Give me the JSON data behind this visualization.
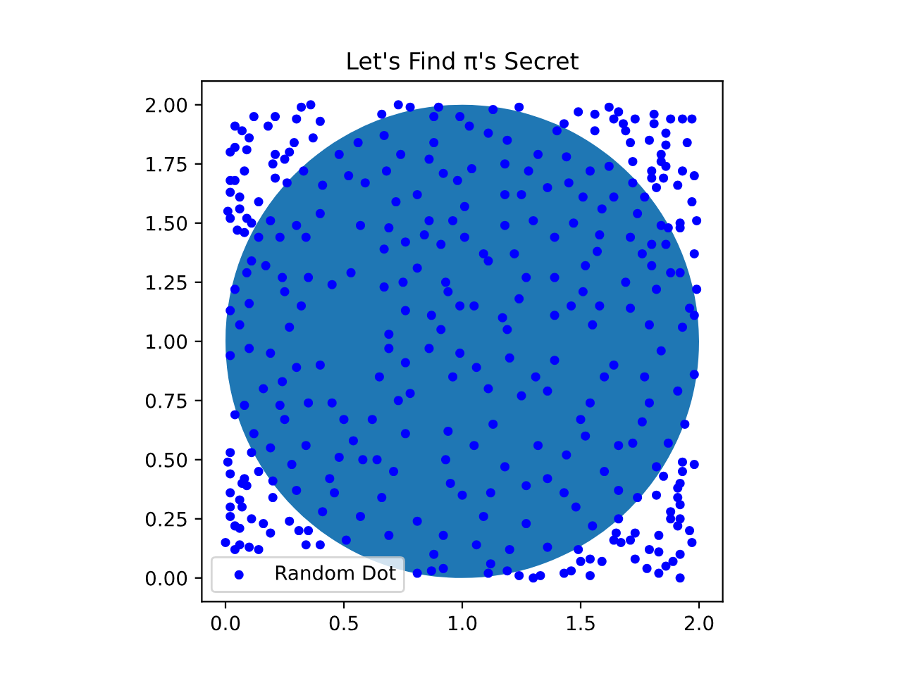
{
  "chart_data": {
    "type": "scatter",
    "title": "Let's Find π's Secret",
    "xlim": [
      -0.1,
      2.1
    ],
    "ylim": [
      -0.1,
      2.1
    ],
    "xticks": [
      {
        "value": 0,
        "label": "0.0"
      },
      0.5,
      {
        "value": 1,
        "label": "1.0"
      },
      1.5,
      {
        "value": 2,
        "label": "2.0"
      }
    ],
    "yticks": [
      {
        "value": 0,
        "label": "0.00"
      },
      0.25,
      {
        "value": 0.5,
        "label": "0.50"
      },
      0.75,
      {
        "value": 1,
        "label": "1.00"
      },
      1.25,
      {
        "value": 1.5,
        "label": "1.50"
      },
      1.75,
      {
        "value": 2,
        "label": "2.00"
      }
    ],
    "marker": "circle",
    "legend": "bottom left",
    "series": [
      {
        "type": "bubble",
        "color": "#1f77b4",
        "x": [
          1
        ],
        "values": [
          1
        ],
        "sizes": [
          1
        ]
      },
      {
        "name": "Random Dot",
        "color": "#0000ff",
        "x": [
          0.36,
          0.32,
          0.12,
          0.04,
          0.07,
          0.18,
          0.21,
          0.3,
          0.4,
          0.37,
          0.1,
          0.04,
          0.02,
          0.09,
          0.21,
          0.29,
          0.27,
          0.25,
          0.2,
          0.08,
          0.02,
          0.04,
          0.21,
          0.06,
          0.14,
          0.02,
          0.01,
          0.06,
          0.09,
          0.11,
          0.05,
          0.08,
          0.02,
          1.62,
          1.66,
          1.56,
          1.49,
          1.64,
          1.81,
          1.93,
          1.97,
          1.88,
          1.73,
          1.81,
          1.43,
          1.68,
          1.69,
          1.56,
          1.86,
          1.79,
          1.71,
          1.95,
          1.86,
          1.84,
          1.72,
          1.84,
          1.86,
          1.8,
          1.93,
          1.8,
          1.85,
          1.98,
          1.82,
          1.91,
          1.97,
          1.99,
          1.92,
          1.87,
          1.92,
          1.98,
          1.92,
          1.99,
          1.96,
          1.98,
          1.93,
          0.02,
          0.01,
          0.02,
          0.08,
          0.07,
          0.09,
          0.02,
          0.06,
          0.07,
          0.02,
          0.02,
          0.04,
          0.06,
          0.11,
          0.16,
          0.19,
          0.27,
          0.31,
          0.35,
          0.0,
          0.06,
          0.04,
          0.1,
          0.14,
          0.34,
          0.4,
          0.51,
          0.11,
          0.14,
          0.2,
          0.2,
          1.93,
          1.98,
          1.93,
          1.92,
          1.91,
          1.85,
          1.82,
          1.91,
          1.92,
          1.88,
          1.88,
          1.92,
          1.96,
          1.97,
          1.91,
          1.83,
          1.73,
          1.71,
          1.67,
          1.64,
          1.65,
          1.79,
          1.83,
          1.92,
          1.89,
          1.86,
          1.92,
          1.83,
          1.78,
          1.73,
          1.59,
          1.54,
          1.5,
          1.54,
          1.46,
          1.43,
          1.82,
          0.81,
          0.87,
          1.11,
          1.19,
          1.24,
          1.3,
          1.33,
          1.24,
          0.78,
          0.73,
          0.66,
          0.9,
          1.13,
          0.33,
          0.26,
          0.41,
          0.4,
          0.19,
          0.14,
          0.23,
          0.34,
          0.3,
          0.11,
          0.17,
          0.09,
          0.24,
          0.35,
          0.04,
          0.25,
          0.1,
          0.32,
          0.02,
          0.06,
          0.27,
          0.45,
          0.52,
          0.59,
          0.48,
          0.56,
          0.57,
          0.53,
          0.88,
          0.99,
          1.03,
          0.67,
          1.11,
          0.88,
          0.74,
          1.19,
          1.32,
          0.86,
          0.68,
          0.92,
          1.04,
          1.18,
          1.28,
          0.98,
          0.72,
          0.81,
          1.18,
          1.25,
          1.01,
          0.86,
          0.96,
          1.18,
          1.3,
          0.69,
          0.84,
          0.76,
          1.01,
          0.67,
          0.91,
          1.09,
          1.22,
          0.81,
          1.11,
          0.75,
          0.93,
          1.27,
          0.67,
          0.94,
          0.76,
          0.99,
          1.05,
          1.24,
          0.87,
          1.17,
          0.91,
          1.19,
          0.69,
          1.4,
          1.44,
          1.54,
          1.62,
          1.45,
          1.36,
          1.64,
          1.72,
          1.51,
          1.77,
          1.59,
          1.74,
          1.47,
          1.84,
          1.58,
          1.71,
          1.8,
          1.86,
          1.39,
          1.57,
          1.76,
          1.52,
          1.8,
          1.39,
          1.69,
          1.88,
          1.82,
          1.51,
          1.58,
          1.71,
          1.46,
          1.79,
          1.55,
          1.39,
          0.02,
          0.1,
          0.19,
          0.3,
          0.4,
          0.24,
          0.16,
          0.08,
          0.23,
          0.35,
          0.45,
          0.04,
          0.25,
          0.5,
          0.12,
          0.34,
          0.54,
          0.19,
          0.28,
          0.48,
          0.58,
          0.44,
          0.3,
          0.46,
          0.41,
          0.57,
          0.69,
          0.86,
          0.99,
          1.2,
          0.76,
          1.06,
          0.65,
          0.96,
          1.31,
          0.78,
          1.11,
          0.73,
          1.25,
          0.62,
          0.94,
          1.13,
          0.76,
          1.05,
          1.32,
          0.64,
          0.93,
          1.18,
          0.71,
          0.95,
          1.12,
          1.27,
          0.66,
          1.0,
          0.81,
          1.09,
          1.27,
          0.69,
          0.92,
          1.06,
          1.2,
          0.88,
          1.12,
          0.92,
          1.39,
          1.64,
          1.84,
          1.98,
          1.6,
          1.77,
          1.91,
          1.36,
          1.54,
          1.79,
          1.5,
          1.76,
          1.94,
          1.52,
          1.72,
          1.87,
          1.44,
          1.66,
          1.36,
          1.6,
          1.43,
          1.66,
          1.74,
          1.48,
          1.66,
          1.55,
          1.36,
          1.49
        ],
        "values": [
          2.0,
          1.99,
          1.95,
          1.91,
          1.89,
          1.91,
          1.95,
          1.94,
          1.93,
          1.86,
          1.86,
          1.82,
          1.8,
          1.81,
          1.79,
          1.84,
          1.8,
          1.77,
          1.75,
          1.72,
          1.68,
          1.68,
          1.69,
          1.61,
          1.59,
          1.63,
          1.55,
          1.56,
          1.52,
          1.5,
          1.47,
          1.46,
          1.52,
          1.99,
          1.97,
          1.96,
          1.97,
          1.94,
          1.96,
          1.94,
          1.94,
          1.94,
          1.94,
          1.92,
          1.92,
          1.92,
          1.89,
          1.89,
          1.88,
          1.85,
          1.84,
          1.84,
          1.83,
          1.79,
          1.76,
          1.76,
          1.74,
          1.72,
          1.72,
          1.69,
          1.69,
          1.7,
          1.65,
          1.66,
          1.59,
          1.51,
          1.5,
          1.48,
          1.48,
          1.37,
          1.29,
          1.22,
          1.14,
          1.11,
          1.06,
          0.53,
          0.49,
          0.44,
          0.42,
          0.4,
          0.39,
          0.36,
          0.33,
          0.3,
          0.3,
          0.26,
          0.22,
          0.21,
          0.25,
          0.23,
          0.19,
          0.24,
          0.2,
          0.2,
          0.15,
          0.14,
          0.12,
          0.13,
          0.12,
          0.14,
          0.14,
          0.16,
          0.53,
          0.45,
          0.41,
          0.34,
          0.49,
          0.48,
          0.45,
          0.4,
          0.38,
          0.43,
          0.35,
          0.34,
          0.31,
          0.28,
          0.25,
          0.25,
          0.2,
          0.15,
          0.22,
          0.18,
          0.19,
          0.16,
          0.15,
          0.16,
          0.19,
          0.12,
          0.11,
          0.1,
          0.07,
          0.05,
          0.0,
          0.02,
          0.04,
          0.08,
          0.07,
          0.08,
          0.07,
          0.01,
          0.03,
          0.02,
          0.47,
          0.02,
          0.03,
          0.02,
          0.03,
          0.01,
          0.0,
          0.01,
          1.99,
          1.99,
          2.0,
          1.96,
          1.99,
          1.98,
          1.72,
          1.67,
          1.66,
          1.54,
          1.51,
          1.44,
          1.44,
          1.44,
          1.49,
          1.34,
          1.32,
          1.29,
          1.27,
          1.27,
          1.22,
          1.21,
          1.16,
          1.15,
          1.13,
          1.07,
          1.06,
          1.24,
          1.7,
          1.67,
          1.79,
          1.84,
          1.49,
          1.29,
          1.95,
          1.95,
          1.91,
          1.87,
          1.88,
          1.84,
          1.79,
          1.85,
          1.79,
          1.77,
          1.72,
          1.71,
          1.73,
          1.75,
          1.72,
          1.68,
          1.59,
          1.62,
          1.62,
          1.62,
          1.57,
          1.51,
          1.51,
          1.49,
          1.51,
          1.48,
          1.45,
          1.42,
          1.44,
          1.39,
          1.41,
          1.37,
          1.37,
          1.31,
          1.34,
          1.25,
          1.25,
          1.27,
          1.23,
          1.21,
          1.13,
          1.15,
          1.15,
          1.18,
          1.11,
          1.1,
          1.05,
          1.05,
          1.03,
          1.89,
          1.78,
          1.72,
          1.74,
          1.67,
          1.65,
          1.61,
          1.67,
          1.61,
          1.61,
          1.56,
          1.54,
          1.5,
          1.49,
          1.45,
          1.44,
          1.41,
          1.41,
          1.44,
          1.38,
          1.37,
          1.32,
          1.32,
          1.27,
          1.25,
          1.29,
          1.22,
          1.21,
          1.15,
          1.14,
          1.15,
          1.07,
          1.07,
          1.11,
          0.94,
          0.97,
          0.95,
          0.89,
          0.9,
          0.83,
          0.8,
          0.73,
          0.73,
          0.74,
          0.74,
          0.69,
          0.67,
          0.67,
          0.61,
          0.56,
          0.58,
          0.55,
          0.48,
          0.51,
          0.5,
          0.42,
          0.37,
          0.36,
          0.28,
          0.26,
          0.97,
          0.97,
          0.95,
          0.93,
          0.91,
          0.89,
          0.85,
          0.85,
          0.85,
          0.78,
          0.8,
          0.75,
          0.77,
          0.67,
          0.62,
          0.65,
          0.61,
          0.56,
          0.56,
          0.5,
          0.5,
          0.47,
          0.45,
          0.4,
          0.36,
          0.39,
          0.34,
          0.35,
          0.24,
          0.26,
          0.23,
          0.18,
          0.18,
          0.14,
          0.12,
          0.1,
          0.06,
          0.04,
          0.92,
          0.9,
          0.96,
          0.86,
          0.85,
          0.85,
          0.79,
          0.79,
          0.74,
          0.74,
          0.67,
          0.66,
          0.65,
          0.6,
          0.57,
          0.57,
          0.52,
          0.56,
          0.42,
          0.45,
          0.36,
          0.37,
          0.34,
          0.3,
          0.25,
          0.22,
          0.13,
          0.12
        ]
      }
    ]
  }
}
